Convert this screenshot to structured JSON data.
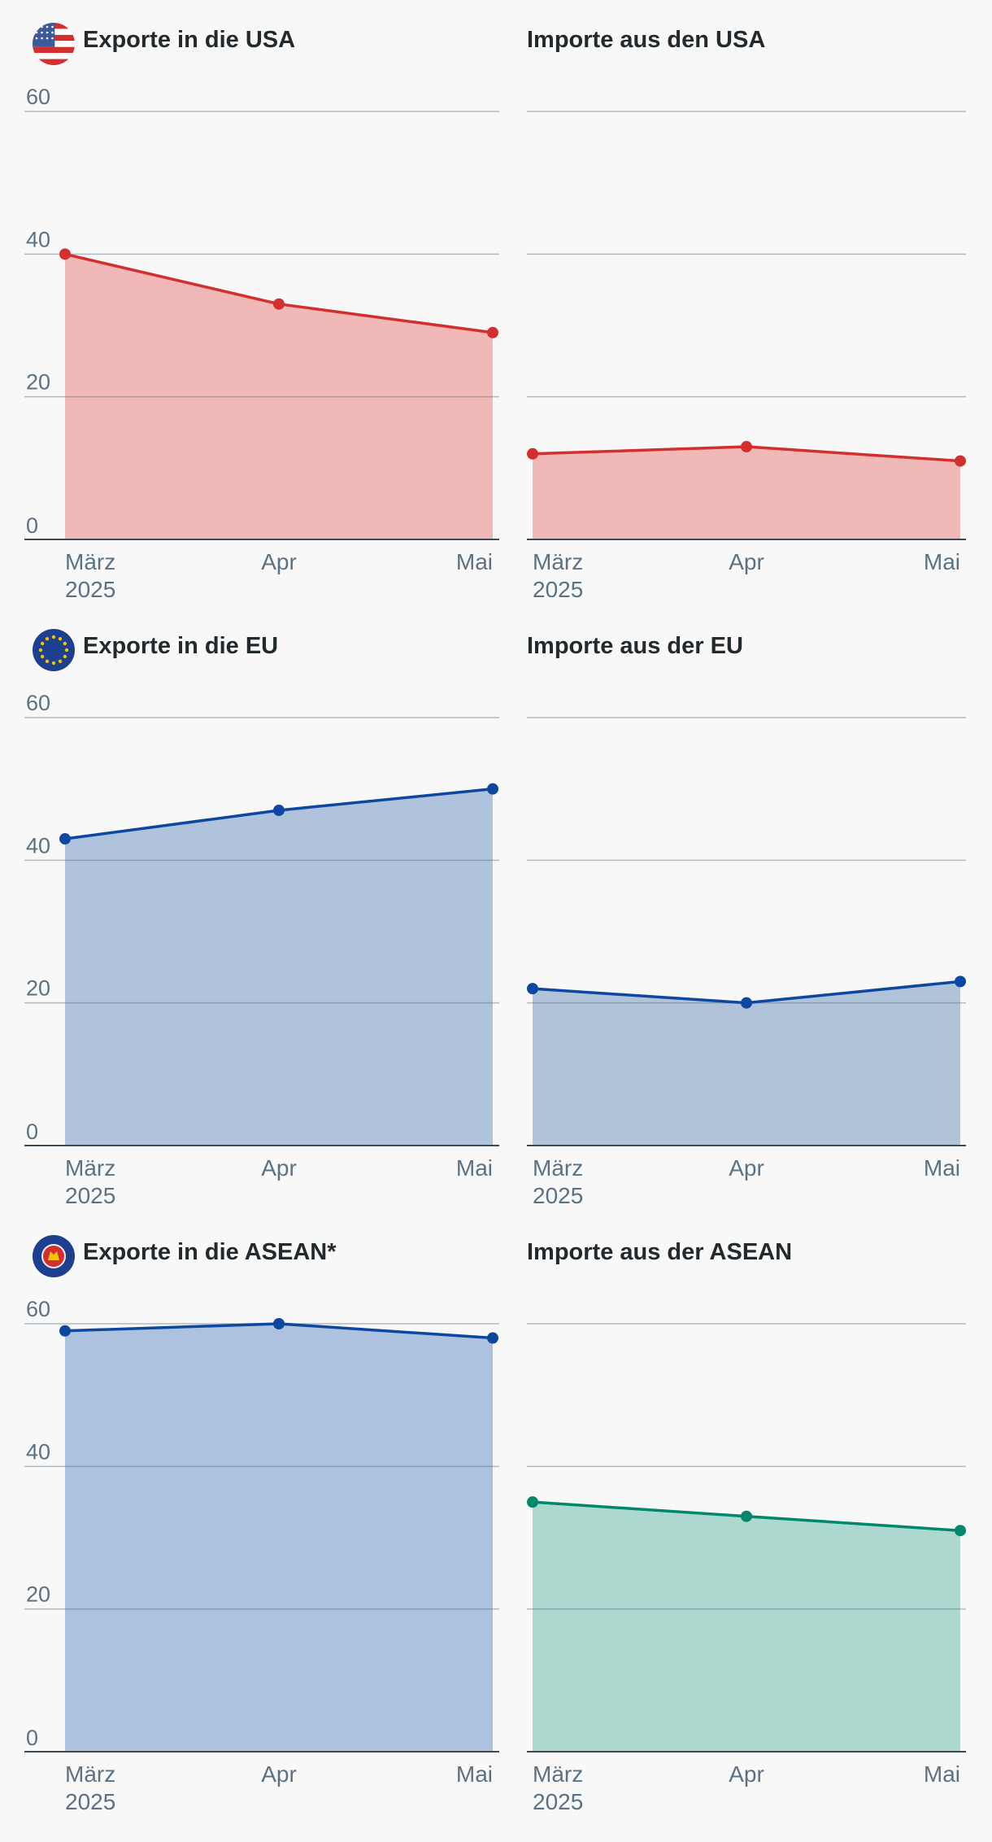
{
  "chart_data": [
    {
      "type": "area",
      "title": "Exporte in die USA",
      "flag": "us-flag-icon",
      "color": "#d32f2f",
      "fill": "#f0b9b8",
      "categories": [
        "März",
        "Apr",
        "Mai"
      ],
      "year_label": "2025",
      "values": [
        40,
        33,
        29
      ],
      "ylim": [
        0,
        60
      ],
      "yticks": [
        "0",
        "20",
        "40",
        "60"
      ],
      "grid": true
    },
    {
      "type": "area",
      "title": "Importe aus den USA",
      "color": "#d32f2f",
      "fill": "#f0b9b8",
      "categories": [
        "März",
        "Apr",
        "Mai"
      ],
      "year_label": "2025",
      "values": [
        12,
        13,
        11
      ],
      "ylim": [
        0,
        60
      ],
      "grid": true
    },
    {
      "type": "area",
      "title": "Exporte in die EU",
      "flag": "eu-flag-icon",
      "color": "#0d47a1",
      "fill": "#b0c3dd",
      "categories": [
        "März",
        "Apr",
        "Mai"
      ],
      "year_label": "2025",
      "values": [
        43,
        47,
        50
      ],
      "ylim": [
        0,
        60
      ],
      "yticks": [
        "0",
        "20",
        "40",
        "60"
      ],
      "grid": true
    },
    {
      "type": "area",
      "title": "Importe aus der EU",
      "color": "#0d47a1",
      "fill": "#b1c3d9",
      "categories": [
        "März",
        "Apr",
        "Mai"
      ],
      "year_label": "2025",
      "values": [
        22,
        20,
        23
      ],
      "ylim": [
        0,
        60
      ],
      "grid": true
    },
    {
      "type": "area",
      "title": "Exporte in die ASEAN*",
      "flag": "asean-flag-icon",
      "color": "#0d47a1",
      "fill": "#adc2de",
      "categories": [
        "März",
        "Apr",
        "Mai"
      ],
      "year_label": "2025",
      "values": [
        59,
        60,
        58
      ],
      "ylim": [
        0,
        60
      ],
      "yticks": [
        "0",
        "20",
        "40",
        "60"
      ],
      "grid": true
    },
    {
      "type": "area",
      "title": "Importe aus der ASEAN",
      "color": "#00876c",
      "fill": "#add8d0",
      "categories": [
        "März",
        "Apr",
        "Mai"
      ],
      "year_label": "2025",
      "values": [
        35,
        33,
        31
      ],
      "ylim": [
        0,
        60
      ],
      "grid": true
    }
  ]
}
